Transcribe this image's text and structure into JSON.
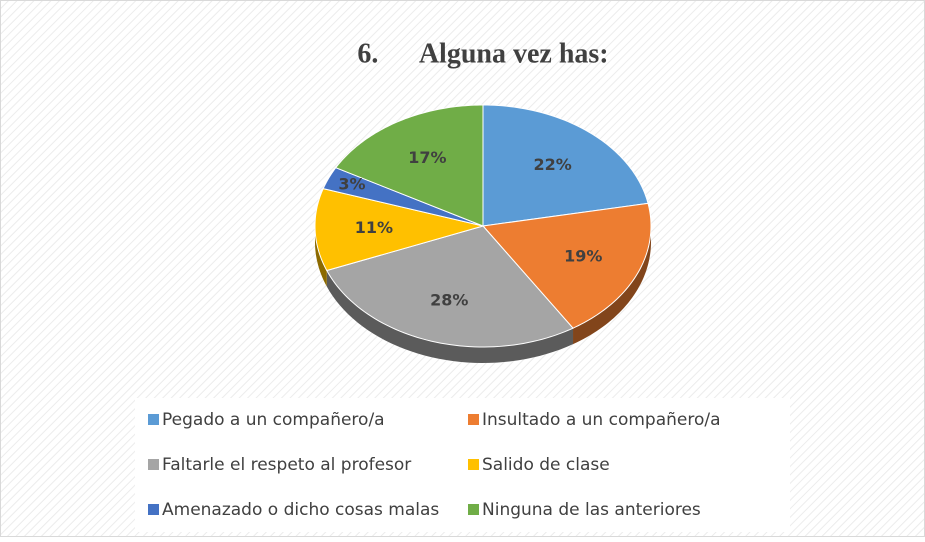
{
  "chart_data": {
    "type": "pie",
    "title": "6.      Alguna vez has:",
    "categories": [
      "Pegado a un compañero/a",
      "Insultado a un compañero/a",
      "Faltarle el respeto al profesor",
      "Salido de clase",
      "Amenazado o dicho cosas malas",
      "Ninguna de las anteriores"
    ],
    "values": [
      22,
      19,
      28,
      11,
      3,
      17
    ],
    "value_labels": [
      "22%",
      "19%",
      "28%",
      "11%",
      "3%",
      "17%"
    ],
    "colors": [
      "#5b9bd5",
      "#ed7d31",
      "#a5a5a5",
      "#ffc000",
      "#4472c4",
      "#70ad47"
    ],
    "legend": "bottom"
  }
}
